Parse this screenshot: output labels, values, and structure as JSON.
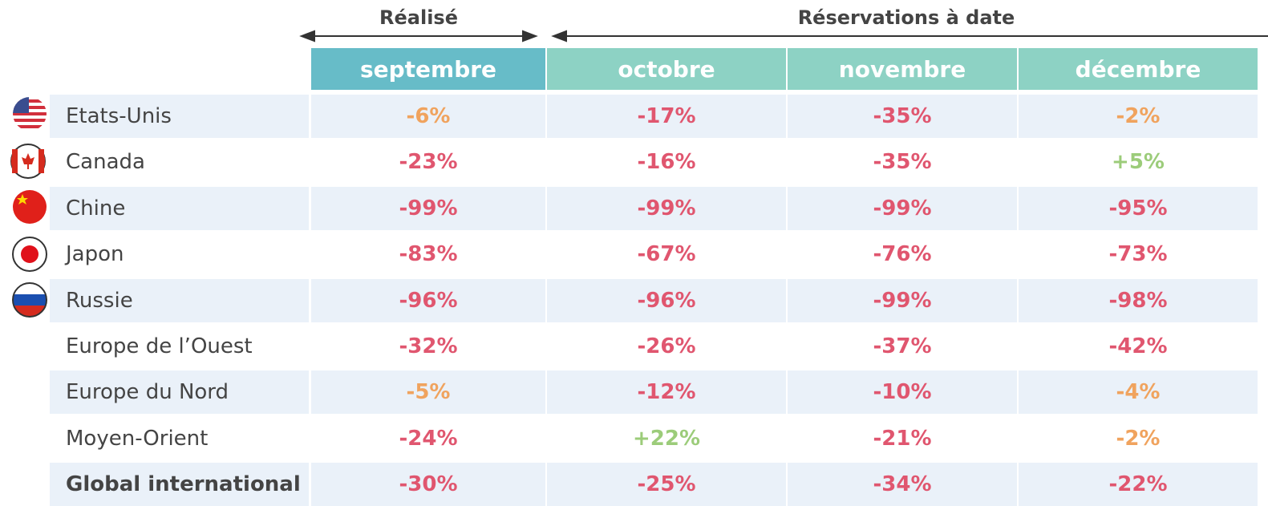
{
  "header": {
    "groups": [
      "Réalisé",
      "Réservations à date"
    ],
    "months": [
      "septembre",
      "octobre",
      "novembre",
      "décembre"
    ]
  },
  "table": {
    "rows": [
      {
        "label": "Etats-Unis",
        "cells": [
          "-6%",
          "-17%",
          "-35%",
          "-2%"
        ],
        "colors": [
          "#f0a35e",
          "#e0566f",
          "#e0566f",
          "#f0a35e"
        ]
      },
      {
        "label": "Canada",
        "cells": [
          "-23%",
          "-16%",
          "-35%",
          "+5%"
        ],
        "colors": [
          "#e0566f",
          "#e0566f",
          "#e0566f",
          "#9ccc7a"
        ]
      },
      {
        "label": "Chine",
        "cells": [
          "-99%",
          "-99%",
          "-99%",
          "-95%"
        ],
        "colors": [
          "#e0566f",
          "#e0566f",
          "#e0566f",
          "#e0566f"
        ]
      },
      {
        "label": "Japon",
        "cells": [
          "-83%",
          "-67%",
          "-76%",
          "-73%"
        ],
        "colors": [
          "#e0566f",
          "#e0566f",
          "#e0566f",
          "#e0566f"
        ]
      },
      {
        "label": "Russie",
        "cells": [
          "-96%",
          "-96%",
          "-99%",
          "-98%"
        ],
        "colors": [
          "#e0566f",
          "#e0566f",
          "#e0566f",
          "#e0566f"
        ]
      },
      {
        "label": "Europe de l’Ouest",
        "cells": [
          "-32%",
          "-26%",
          "-37%",
          "-42%"
        ],
        "colors": [
          "#e0566f",
          "#e0566f",
          "#e0566f",
          "#e0566f"
        ]
      },
      {
        "label": "Europe du Nord",
        "cells": [
          "-5%",
          "-12%",
          "-10%",
          "-4%"
        ],
        "colors": [
          "#f0a35e",
          "#e0566f",
          "#e0566f",
          "#f0a35e"
        ]
      },
      {
        "label": "Moyen-Orient",
        "cells": [
          "-24%",
          "+22%",
          "-21%",
          "-2%"
        ],
        "colors": [
          "#e0566f",
          "#9ccc7a",
          "#e0566f",
          "#f0a35e"
        ]
      },
      {
        "label": "Global international",
        "cells": [
          "-30%",
          "-25%",
          "-34%",
          "-22%"
        ],
        "colors": [
          "#e0566f",
          "#e0566f",
          "#e0566f",
          "#e0566f"
        ]
      }
    ]
  }
}
